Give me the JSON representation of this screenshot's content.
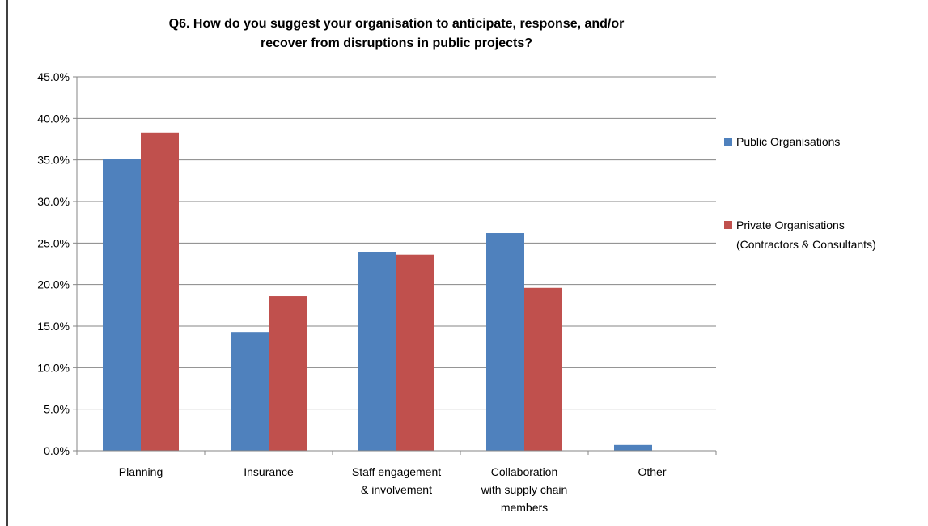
{
  "chart_data": {
    "type": "bar",
    "title": [
      "Q6. How do you suggest your organisation to anticipate, response, and/or",
      "recover from disruptions in public projects?"
    ],
    "categories": [
      [
        "Planning"
      ],
      [
        "Insurance"
      ],
      [
        "Staff engagement",
        "& involvement"
      ],
      [
        "Collaboration",
        "with supply chain",
        "members"
      ],
      [
        "Other"
      ]
    ],
    "series": [
      {
        "name": [
          "Public Organisations"
        ],
        "color": "#4F81BD",
        "values": [
          35.1,
          14.3,
          23.9,
          26.2,
          0.7
        ]
      },
      {
        "name": [
          "Private Organisations",
          "(Contractors & Consultants)"
        ],
        "color": "#C0504D",
        "values": [
          38.3,
          18.6,
          23.6,
          19.6,
          0.0
        ]
      }
    ],
    "y_ticks": [
      "0.0%",
      "5.0%",
      "10.0%",
      "15.0%",
      "20.0%",
      "25.0%",
      "30.0%",
      "35.0%",
      "40.0%",
      "45.0%"
    ],
    "ylim": [
      0,
      45
    ],
    "grid": true,
    "legend_position": "right"
  }
}
